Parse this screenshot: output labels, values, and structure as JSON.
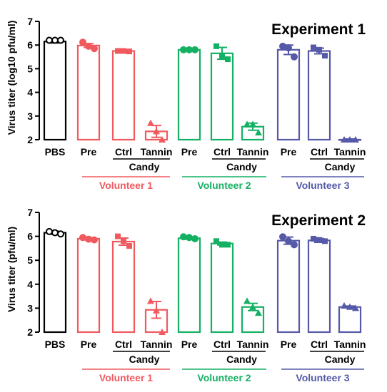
{
  "chart_data": [
    {
      "type": "bar",
      "title": "Experiment 1",
      "ylabel": "Virus titer (log10 pfu/ml)",
      "ylim": [
        2,
        7
      ],
      "yticks": [
        2,
        3,
        4,
        5,
        6,
        7
      ],
      "categories": [
        "PBS",
        "Pre",
        "Ctrl",
        "Tannin",
        "Pre",
        "Ctrl",
        "Tannin",
        "Pre",
        "Ctrl",
        "Tannin"
      ],
      "groups": [
        "",
        "Volunteer 1",
        "Volunteer 1",
        "Volunteer 1",
        "Volunteer 2",
        "Volunteer 2",
        "Volunteer 2",
        "Volunteer 3",
        "Volunteer 3",
        "Volunteer 3"
      ],
      "values": [
        6.15,
        5.98,
        5.75,
        2.35,
        5.8,
        5.65,
        2.55,
        5.8,
        5.75,
        2.0
      ],
      "errors": [
        0.06,
        0.08,
        0.04,
        0.25,
        0.03,
        0.25,
        0.15,
        0.2,
        0.12,
        0.03
      ],
      "points": [
        [
          6.2,
          6.2,
          6.2
        ],
        [
          6.12,
          5.95,
          5.85
        ],
        [
          5.75,
          5.75,
          5.73
        ],
        [
          2.7,
          2.35,
          2.0
        ],
        [
          5.8,
          5.8,
          5.8
        ],
        [
          5.95,
          5.55,
          5.4
        ],
        [
          2.65,
          2.65,
          2.3
        ],
        [
          5.95,
          5.88,
          5.5
        ],
        [
          5.9,
          5.8,
          5.55
        ],
        [
          2.0,
          2.0,
          2.0
        ]
      ],
      "markers": [
        "circle",
        "circle",
        "square",
        "triangle",
        "circle",
        "square",
        "triangle",
        "circle",
        "square",
        "triangle"
      ],
      "colors": [
        "#000000",
        "#f05a5f",
        "#f05a5f",
        "#f05a5f",
        "#14b063",
        "#14b063",
        "#14b063",
        "#5559a8",
        "#5559a8",
        "#5559a8"
      ],
      "candy_label": "Candy",
      "volunteers": [
        {
          "label": "Volunteer 1",
          "color": "#f05a5f"
        },
        {
          "label": "Volunteer 2",
          "color": "#14b063"
        },
        {
          "label": "Volunteer 3",
          "color": "#5559a8"
        }
      ]
    },
    {
      "type": "bar",
      "title": "Experiment 2",
      "ylabel": "Virus titer (pfu/ml)",
      "ylim": [
        2,
        7
      ],
      "yticks": [
        2,
        3,
        4,
        5,
        6,
        7
      ],
      "categories": [
        "PBS",
        "Pre",
        "Ctrl",
        "Tannin",
        "Pre",
        "Ctrl",
        "Tannin",
        "Pre",
        "Ctrl",
        "Tannin"
      ],
      "groups": [
        "",
        "Volunteer 1",
        "Volunteer 1",
        "Volunteer 1",
        "Volunteer 2",
        "Volunteer 2",
        "Volunteer 2",
        "Volunteer 3",
        "Volunteer 3",
        "Volunteer 3"
      ],
      "values": [
        6.15,
        5.9,
        5.78,
        2.93,
        5.92,
        5.7,
        3.05,
        5.82,
        5.83,
        3.05
      ],
      "errors": [
        0.06,
        0.05,
        0.15,
        0.35,
        0.04,
        0.06,
        0.15,
        0.15,
        0.08,
        0.04
      ],
      "points": [
        [
          6.2,
          6.15,
          6.1
        ],
        [
          5.95,
          5.88,
          5.85
        ],
        [
          6.0,
          5.8,
          5.6
        ],
        [
          3.3,
          2.9,
          2.0
        ],
        [
          5.98,
          5.95,
          5.9
        ],
        [
          5.8,
          5.65,
          5.65
        ],
        [
          3.3,
          3.05,
          2.8
        ],
        [
          5.98,
          5.8,
          5.65
        ],
        [
          5.9,
          5.85,
          5.8
        ],
        [
          3.1,
          3.05,
          3.0
        ]
      ],
      "markers": [
        "circle",
        "circle",
        "square",
        "triangle",
        "circle",
        "square",
        "triangle",
        "circle",
        "square",
        "triangle"
      ],
      "colors": [
        "#000000",
        "#f05a5f",
        "#f05a5f",
        "#f05a5f",
        "#14b063",
        "#14b063",
        "#14b063",
        "#5559a8",
        "#5559a8",
        "#5559a8"
      ],
      "candy_label": "Candy",
      "volunteers": [
        {
          "label": "Volunteer 1",
          "color": "#f05a5f"
        },
        {
          "label": "Volunteer 2",
          "color": "#14b063"
        },
        {
          "label": "Volunteer 3",
          "color": "#5559a8"
        }
      ]
    }
  ]
}
